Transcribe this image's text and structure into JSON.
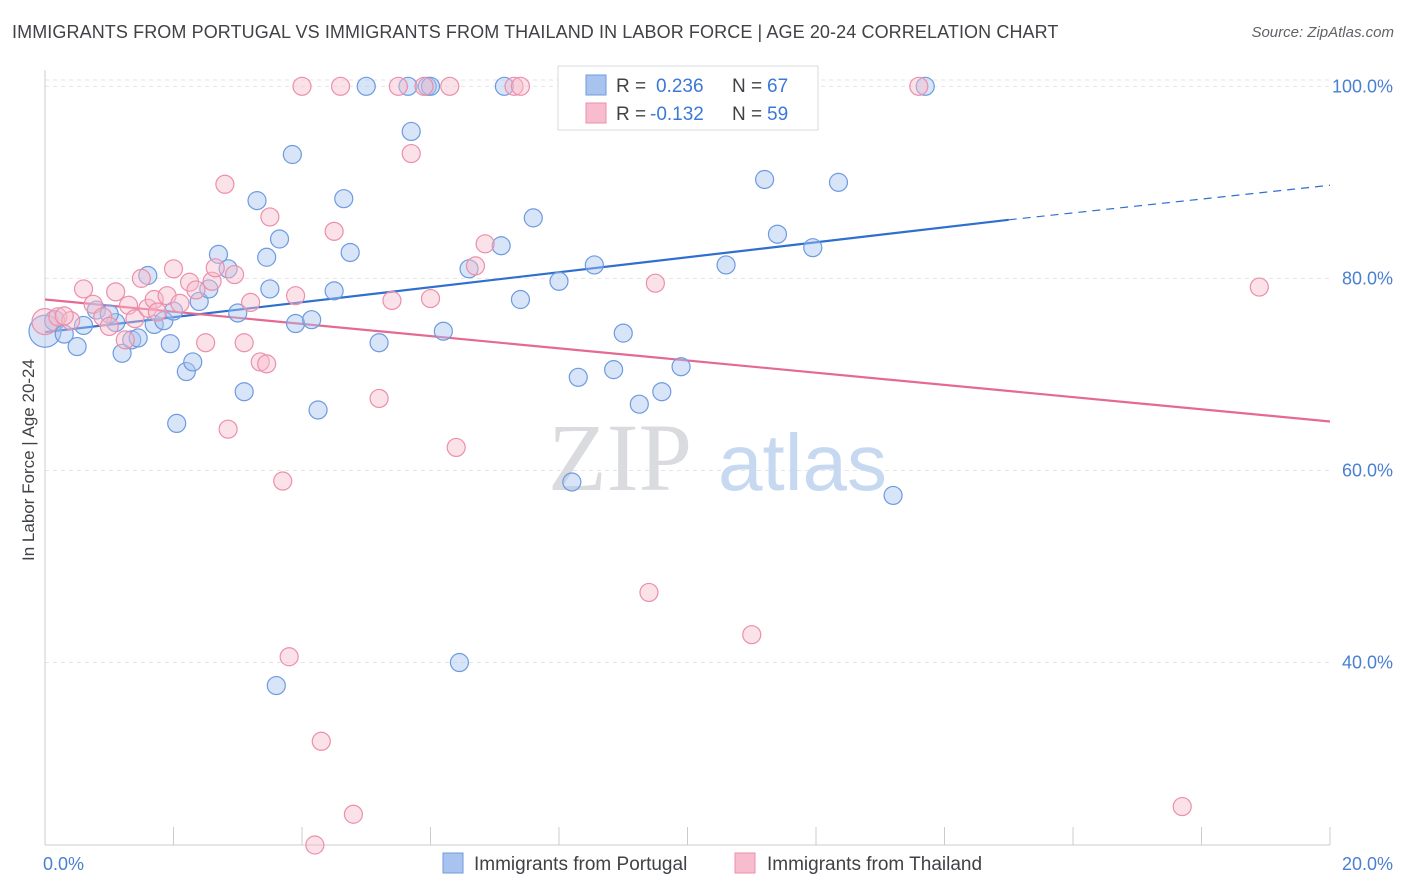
{
  "title": "IMMIGRANTS FROM PORTUGAL VS IMMIGRANTS FROM THAILAND IN LABOR FORCE | AGE 20-24 CORRELATION CHART",
  "source": "Source: ZipAtlas.com",
  "watermark": {
    "zip": "ZIP",
    "atlas": "atlas"
  },
  "legend_top": {
    "rows": [
      {
        "r_label": "R =",
        "r_value": "0.236",
        "n_label": "N =",
        "n_value": "67",
        "color": "#a8c4ee"
      },
      {
        "r_label": "R =",
        "r_value": "-0.132",
        "n_label": "N =",
        "n_value": "59",
        "color": "#f5b6c8"
      }
    ]
  },
  "legend_bottom": {
    "portugal": "Immigrants from Portugal",
    "thailand": "Immigrants from Thailand"
  },
  "colors": {
    "portugal_fill": "#a8c4ee",
    "portugal_stroke": "#6d9be0",
    "portugal_line": "#2f6fce",
    "thailand_fill": "#f7bccd",
    "thailand_stroke": "#ec8fab",
    "thailand_line": "#e46a94",
    "tick_text": "#4a7fd4"
  },
  "chart_data": {
    "type": "scatter",
    "xlabel": "",
    "ylabel": "In Labor Force | Age 20-24",
    "xlim": [
      0,
      20
    ],
    "ylim": [
      21,
      101.7
    ],
    "x_tick_labels": [
      {
        "value": 0,
        "label": "0.0%"
      },
      {
        "value": 20,
        "label": "20.0%"
      }
    ],
    "y_tick_labels": [
      {
        "value": 100,
        "label": "100.0%"
      },
      {
        "value": 80,
        "label": "80.0%"
      },
      {
        "value": 60,
        "label": "60.0%"
      },
      {
        "value": 40,
        "label": "40.0%"
      }
    ],
    "grid": true,
    "series": [
      {
        "name": "Immigrants from Portugal",
        "trend": {
          "x0": 0,
          "y0": 74.4,
          "x1": 15.0,
          "y1": 86.1,
          "dash_to_x": 20,
          "dash_to_y": 89.7
        },
        "points": [
          [
            0.0,
            74.5,
            16
          ],
          [
            0.15,
            75.6,
            10
          ],
          [
            0.3,
            74.2,
            9
          ],
          [
            0.5,
            72.9,
            9
          ],
          [
            0.8,
            76.7,
            9
          ],
          [
            1.1,
            75.4,
            9
          ],
          [
            1.2,
            72.2,
            9
          ],
          [
            1.35,
            73.6,
            9
          ],
          [
            1.45,
            73.8,
            9
          ],
          [
            1.6,
            80.3,
            9
          ],
          [
            1.7,
            75.2,
            9
          ],
          [
            1.85,
            75.6,
            9
          ],
          [
            1.95,
            73.2,
            9
          ],
          [
            2.05,
            64.9,
            9
          ],
          [
            2.2,
            70.3,
            9
          ],
          [
            2.3,
            71.3,
            9
          ],
          [
            2.4,
            77.6,
            9
          ],
          [
            2.55,
            78.9,
            9
          ],
          [
            2.7,
            82.5,
            9
          ],
          [
            2.85,
            81.0,
            9
          ],
          [
            3.0,
            76.4,
            9
          ],
          [
            3.1,
            68.2,
            9
          ],
          [
            3.3,
            88.1,
            9
          ],
          [
            3.45,
            82.2,
            9
          ],
          [
            3.5,
            78.9,
            9
          ],
          [
            3.65,
            84.1,
            9
          ],
          [
            3.85,
            92.9,
            9
          ],
          [
            3.9,
            75.3,
            9
          ],
          [
            4.15,
            75.7,
            9
          ],
          [
            4.25,
            66.3,
            9
          ],
          [
            4.5,
            78.7,
            9
          ],
          [
            4.65,
            88.3,
            9
          ],
          [
            4.75,
            82.7,
            9
          ],
          [
            5.0,
            100.0,
            9
          ],
          [
            5.2,
            73.3,
            9
          ],
          [
            5.65,
            100.0,
            9
          ],
          [
            5.7,
            95.3,
            9
          ],
          [
            5.95,
            100.0,
            9
          ],
          [
            6.2,
            74.5,
            9
          ],
          [
            6.6,
            81.0,
            9
          ],
          [
            6.45,
            40.0,
            9
          ],
          [
            7.1,
            83.4,
            9
          ],
          [
            7.15,
            100.0,
            9
          ],
          [
            7.4,
            77.8,
            9
          ],
          [
            7.6,
            86.3,
            9
          ],
          [
            8.0,
            79.7,
            9
          ],
          [
            8.2,
            58.8,
            9
          ],
          [
            8.3,
            69.7,
            9
          ],
          [
            8.55,
            81.4,
            9
          ],
          [
            8.85,
            70.5,
            9
          ],
          [
            9.0,
            74.3,
            9
          ],
          [
            9.25,
            66.9,
            9
          ],
          [
            9.6,
            68.2,
            9
          ],
          [
            9.9,
            70.8,
            9
          ],
          [
            10.6,
            81.4,
            9
          ],
          [
            11.2,
            90.3,
            9
          ],
          [
            11.4,
            84.6,
            9
          ],
          [
            11.8,
            100.0,
            9
          ],
          [
            11.95,
            83.2,
            9
          ],
          [
            12.35,
            90.0,
            9
          ],
          [
            13.2,
            57.4,
            9
          ],
          [
            13.7,
            100.0,
            9
          ],
          [
            1.0,
            76.3,
            9
          ],
          [
            0.6,
            75.1,
            9
          ],
          [
            2.0,
            76.6,
            9
          ],
          [
            3.6,
            37.6,
            9
          ],
          [
            6.0,
            100.0,
            9
          ]
        ]
      },
      {
        "name": "Immigrants from Thailand",
        "trend": {
          "x0": 0,
          "y0": 77.8,
          "x1": 20,
          "y1": 65.1
        },
        "points": [
          [
            0.0,
            75.5,
            13
          ],
          [
            0.2,
            76.0,
            9
          ],
          [
            0.4,
            75.6,
            9
          ],
          [
            0.6,
            78.9,
            9
          ],
          [
            0.75,
            77.3,
            9
          ],
          [
            0.9,
            76.0,
            9
          ],
          [
            1.0,
            75.0,
            9
          ],
          [
            1.1,
            78.6,
            9
          ],
          [
            1.25,
            73.6,
            9
          ],
          [
            1.3,
            77.2,
            9
          ],
          [
            1.4,
            75.8,
            9
          ],
          [
            1.5,
            80.0,
            9
          ],
          [
            1.6,
            76.9,
            9
          ],
          [
            1.7,
            77.8,
            9
          ],
          [
            1.9,
            78.2,
            9
          ],
          [
            2.0,
            81.0,
            9
          ],
          [
            2.1,
            77.4,
            9
          ],
          [
            2.25,
            79.6,
            9
          ],
          [
            2.35,
            78.8,
            9
          ],
          [
            2.5,
            73.3,
            9
          ],
          [
            2.6,
            79.7,
            9
          ],
          [
            2.65,
            81.1,
            9
          ],
          [
            2.8,
            89.8,
            9
          ],
          [
            2.85,
            64.3,
            9
          ],
          [
            2.95,
            80.4,
            9
          ],
          [
            3.1,
            73.3,
            9
          ],
          [
            3.2,
            77.5,
            9
          ],
          [
            3.35,
            71.3,
            9
          ],
          [
            3.45,
            71.1,
            9
          ],
          [
            3.5,
            86.4,
            9
          ],
          [
            3.7,
            58.9,
            9
          ],
          [
            3.8,
            40.6,
            9
          ],
          [
            3.9,
            78.2,
            9
          ],
          [
            4.0,
            100.0,
            9
          ],
          [
            4.2,
            21.0,
            9
          ],
          [
            4.3,
            31.8,
            9
          ],
          [
            4.5,
            84.9,
            9
          ],
          [
            4.6,
            100.0,
            9
          ],
          [
            4.8,
            24.2,
            9
          ],
          [
            5.2,
            67.5,
            9
          ],
          [
            5.4,
            77.7,
            9
          ],
          [
            5.5,
            100.0,
            9
          ],
          [
            5.7,
            93.0,
            9
          ],
          [
            5.9,
            100.0,
            9
          ],
          [
            6.0,
            77.9,
            9
          ],
          [
            6.3,
            100.0,
            9
          ],
          [
            6.4,
            62.4,
            9
          ],
          [
            6.7,
            81.3,
            9
          ],
          [
            6.85,
            83.6,
            9
          ],
          [
            7.3,
            100.0,
            9
          ],
          [
            9.5,
            79.5,
            9
          ],
          [
            9.4,
            47.3,
            9
          ],
          [
            11.0,
            42.9,
            9
          ],
          [
            13.6,
            100.0,
            9
          ],
          [
            17.7,
            25.0,
            9
          ],
          [
            18.9,
            79.1,
            9
          ],
          [
            7.4,
            100.0,
            9
          ],
          [
            0.3,
            76.1,
            9
          ],
          [
            1.75,
            76.5,
            9
          ]
        ]
      }
    ]
  }
}
